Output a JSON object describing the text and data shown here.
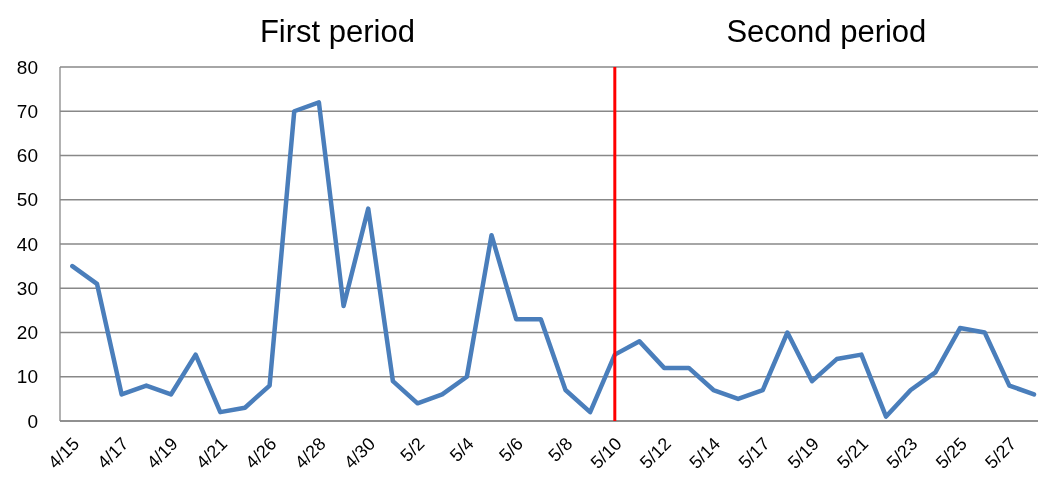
{
  "chart_data": {
    "type": "line",
    "annotations": [
      "First period",
      "Second period"
    ],
    "categories": [
      "4/15",
      null,
      "4/17",
      null,
      "4/19",
      null,
      "4/21",
      null,
      "4/26",
      null,
      "4/28",
      null,
      "4/30",
      null,
      "5/2",
      null,
      "5/4",
      null,
      "5/6",
      null,
      "5/8",
      null,
      "5/10",
      null,
      "5/12",
      null,
      "5/14",
      null,
      "5/17",
      null,
      "5/19",
      null,
      "5/21",
      null,
      "5/23",
      null,
      "5/25",
      null,
      "5/27",
      null
    ],
    "series": [
      {
        "color": "#4a7ebb",
        "values": [
          35,
          31,
          6,
          8,
          6,
          15,
          2,
          3,
          8,
          70,
          72,
          26,
          48,
          9,
          4,
          6,
          10,
          42,
          23,
          23,
          7,
          2,
          15,
          18,
          12,
          12,
          7,
          5,
          7,
          20,
          9,
          14,
          15,
          1,
          7,
          11,
          21,
          20,
          8,
          6
        ]
      }
    ],
    "ylim": [
      0,
      80
    ],
    "yticks": [
      0,
      10,
      20,
      30,
      40,
      50,
      60,
      70,
      80
    ],
    "grid": "y",
    "marker": "none",
    "line_style": "solid",
    "ref_lines": [
      {
        "axis": "x",
        "value": "5/10",
        "color": "#ff0000"
      }
    ]
  }
}
